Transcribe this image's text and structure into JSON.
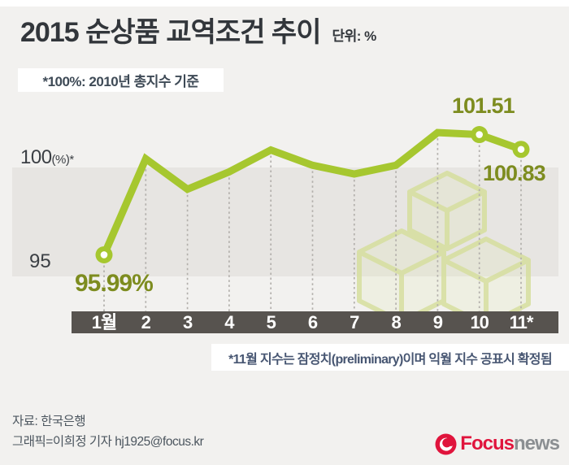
{
  "header": {
    "title": "2015 순상품 교역조건 추이",
    "unit": "단위: %",
    "note": "*100%: 2010년 총지수 기준"
  },
  "chart_data": {
    "type": "line",
    "title": "2015 순상품 교역조건 추이",
    "unit": "%",
    "categories": [
      "1월",
      "2",
      "3",
      "4",
      "5",
      "6",
      "7",
      "8",
      "9",
      "10",
      "11*"
    ],
    "values": [
      95.99,
      100.4,
      99.0,
      99.8,
      100.8,
      100.1,
      99.7,
      100.1,
      101.6,
      101.51,
      100.83
    ],
    "marker_indices": [
      0,
      9,
      10
    ],
    "point_labels": {
      "start": "95.99%",
      "oct": "101.51",
      "nov": "100.83"
    },
    "y_axis": {
      "top_label_main": "100",
      "top_label_sub": "(%)*",
      "bottom_label": "95",
      "band_range": [
        95,
        100
      ],
      "baseline_note": "100% = 2010년 총지수 기준"
    },
    "footnote": "*11월 지수는 잠정치(preliminary)이며 익월 지수 공표시 확정됨",
    "line_color": "#a6c72f",
    "label_color": "#7d8c1f",
    "legend": "none",
    "grid": "dashed vertical drop lines from each point to x-axis"
  },
  "footer": {
    "source": "자료: 한국은행",
    "credit": "그래픽=이희정 기자 hj1925@focus.kr",
    "logo": {
      "brand": "Focus",
      "suffix": "news",
      "brand_color": "#e0143c",
      "suffix_color": "#8b8f92"
    }
  }
}
